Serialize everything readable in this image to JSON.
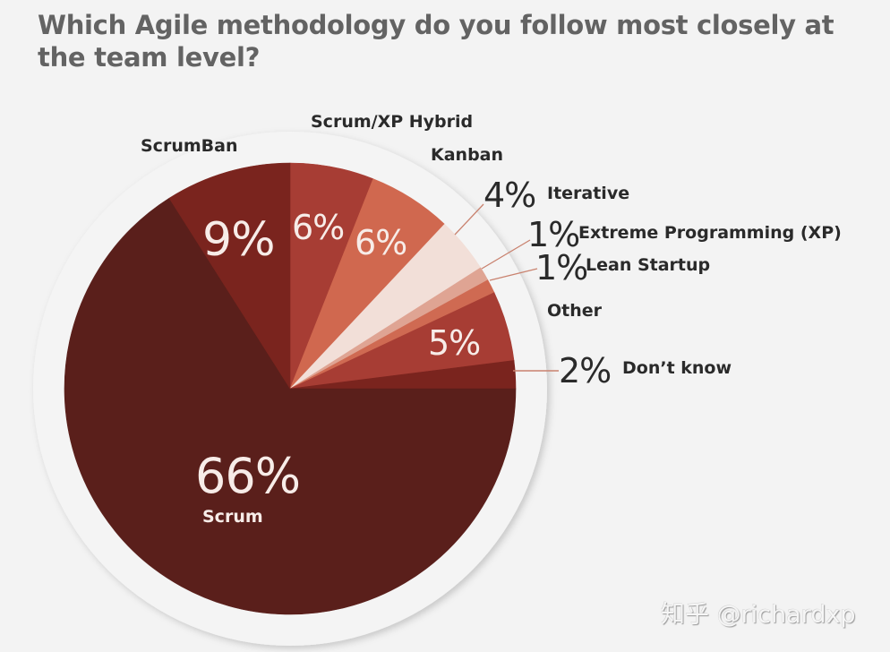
{
  "title": "Which Agile methodology do you follow most closely at the team level?",
  "watermark": "知乎 @richardxp",
  "colors": {
    "background": "#f3f3f3",
    "scrum": "#5a1f1b",
    "scrumban": "#7a241e",
    "scrum_xp_hybrid": "#a73d34",
    "kanban": "#d0684f",
    "iterative": "#f2dfd8",
    "xp": "#dfa493",
    "lean_startup": "#cf6a52",
    "other": "#a73d34",
    "dont_know": "#7a241e"
  },
  "chart_data": {
    "type": "pie",
    "title": "Which Agile methodology do you follow most closely at the team level?",
    "start_angle_deg": 0,
    "direction": "clockwise_from_12_oclock",
    "categories": [
      "Scrum/XP Hybrid",
      "Kanban",
      "Iterative",
      "Extreme Programming (XP)",
      "Lean Startup",
      "Other",
      "Don't know",
      "Scrum",
      "ScrumBan"
    ],
    "values": [
      6,
      6,
      4,
      1,
      1,
      5,
      2,
      66,
      9
    ],
    "value_labels": [
      "6%",
      "6%",
      "4%",
      "1%",
      "1%",
      "5%",
      "2%",
      "66%",
      "9%"
    ],
    "unit": "%",
    "legend": "none (direct labels)"
  },
  "labels": {
    "scrum_xp_hybrid": "Scrum/XP Hybrid",
    "scrumban": "ScrumBan",
    "kanban": "Kanban",
    "iterative": "Iterative",
    "xp": "Extreme Programming (XP)",
    "lean_startup": "Lean Startup",
    "other": "Other",
    "dont_know": "Don’t know",
    "scrum": "Scrum"
  },
  "pct": {
    "scrumban": "9%",
    "scrum_xp_hybrid": "6%",
    "kanban": "6%",
    "iterative": "4%",
    "xp": "1%",
    "lean_startup": "1%",
    "other": "5%",
    "dont_know": "2%",
    "scrum": "66%"
  }
}
